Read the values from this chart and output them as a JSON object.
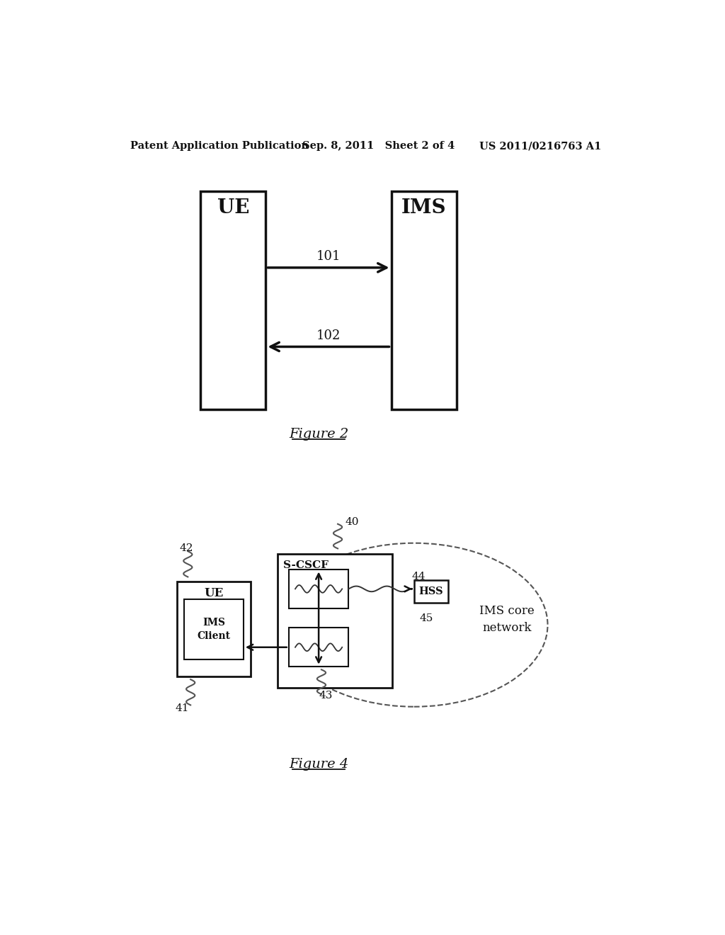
{
  "bg_color": "#ffffff",
  "header_left": "Patent Application Publication",
  "header_mid": "Sep. 8, 2011   Sheet 2 of 4",
  "header_right": "US 2011/0216763 A1",
  "fig2_label": "Figure 2",
  "fig4_label": "Figure 4",
  "fig2_ue_label": "UE",
  "fig2_ims_label": "IMS",
  "fig2_arrow1_label": "101",
  "fig2_arrow2_label": "102",
  "fig4_ue_label": "UE",
  "fig4_ims_client_label": "IMS\nClient",
  "fig4_scscf_label": "S-CSCF",
  "fig4_hss_label": "HSS",
  "fig4_ims_core_label": "IMS core\nnetwork",
  "fig4_label_40": "40",
  "fig4_label_41": "41",
  "fig4_label_42": "42",
  "fig4_label_43": "43",
  "fig4_label_44": "44",
  "fig4_label_45": "45"
}
